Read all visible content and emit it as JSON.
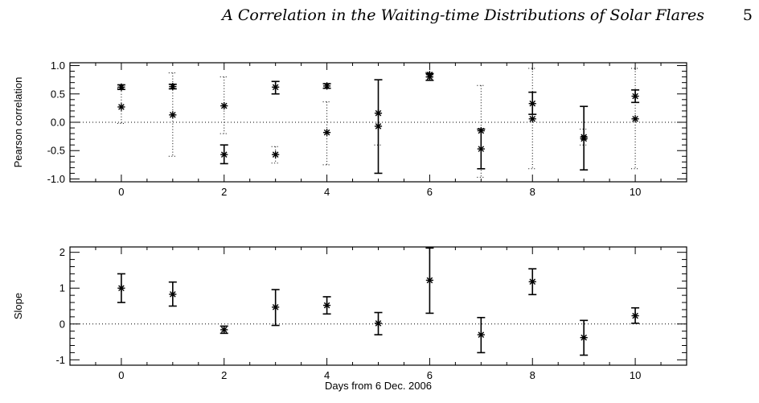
{
  "header": {
    "running_title": "A Correlation in the Waiting-time Distributions of Solar Flares",
    "page_number": "5"
  },
  "chart_data": [
    {
      "type": "scatter",
      "title": "",
      "xlabel": "",
      "ylabel": "Pearson correlation",
      "xlim": [
        -1,
        11
      ],
      "ylim": [
        -1.05,
        1.05
      ],
      "xticks": [
        "0",
        "2",
        "4",
        "6",
        "8",
        "10"
      ],
      "yticks": [
        "1.0",
        "0.5",
        "0.0",
        "-0.5",
        "-1.0"
      ],
      "reference_line_y": 0,
      "series": [
        {
          "style": "solid error bars",
          "x": [
            0,
            1,
            2,
            3,
            4,
            5,
            6,
            7,
            8,
            9,
            10
          ],
          "y": [
            0.62,
            0.63,
            -0.57,
            0.62,
            0.64,
            -0.07,
            0.8,
            -0.47,
            0.33,
            -0.29,
            0.46
          ],
          "lower": [
            0.58,
            0.59,
            -0.73,
            0.5,
            0.6,
            -0.9,
            0.74,
            -0.82,
            0.14,
            -0.84,
            0.35
          ],
          "upper": [
            0.66,
            0.67,
            -0.4,
            0.72,
            0.68,
            0.75,
            0.86,
            -0.12,
            0.53,
            0.28,
            0.57
          ]
        },
        {
          "style": "dotted error bars",
          "x": [
            0,
            1,
            2,
            3,
            4,
            5,
            6,
            7,
            8,
            9,
            10
          ],
          "y": [
            0.27,
            0.13,
            0.29,
            -0.57,
            -0.18,
            0.16,
            0.84,
            -0.15,
            0.06,
            -0.26,
            0.06
          ],
          "lower": [
            -0.02,
            -0.6,
            -0.2,
            -0.72,
            -0.75,
            -0.4,
            0.8,
            -0.97,
            -0.82,
            -0.4,
            -0.82
          ],
          "upper": [
            0.6,
            0.87,
            0.8,
            -0.43,
            0.36,
            0.75,
            0.88,
            0.65,
            0.95,
            -0.12,
            0.95
          ]
        }
      ]
    },
    {
      "type": "scatter",
      "title": "",
      "xlabel": "Days from 6 Dec. 2006",
      "ylabel": "Slope",
      "xlim": [
        -1,
        11
      ],
      "ylim": [
        -1.15,
        2.15
      ],
      "xticks": [
        "0",
        "2",
        "4",
        "6",
        "8",
        "10"
      ],
      "yticks": [
        "2",
        "1",
        "0",
        "-1"
      ],
      "reference_line_y": 0,
      "series": [
        {
          "style": "solid error bars",
          "x": [
            0,
            1,
            2,
            3,
            4,
            5,
            6,
            7,
            8,
            9,
            10
          ],
          "y": [
            1.0,
            0.83,
            -0.16,
            0.47,
            0.52,
            0.02,
            1.22,
            -0.3,
            1.18,
            -0.38,
            0.23
          ],
          "lower": [
            0.6,
            0.5,
            -0.26,
            -0.04,
            0.28,
            -0.3,
            0.3,
            -0.8,
            0.82,
            -0.87,
            0.02
          ],
          "upper": [
            1.4,
            1.17,
            -0.06,
            0.96,
            0.76,
            0.32,
            2.12,
            0.18,
            1.54,
            0.1,
            0.45
          ]
        }
      ]
    }
  ]
}
